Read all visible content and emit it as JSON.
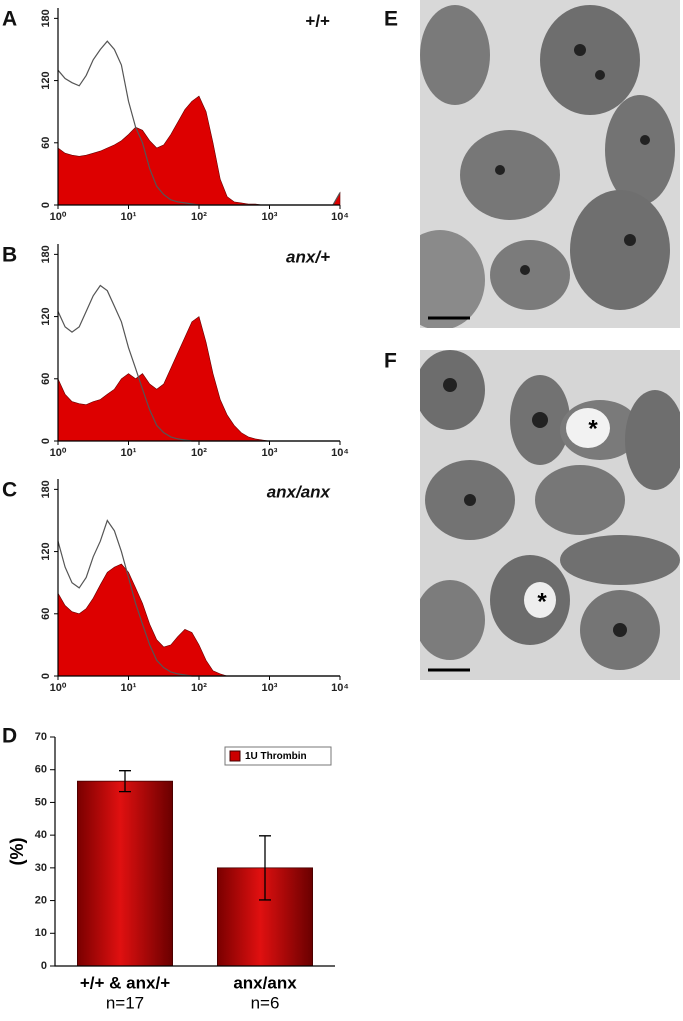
{
  "chart_data": [
    {
      "type": "area",
      "panel_label": "A",
      "annotation": "+/+",
      "xscale": "log",
      "x": [
        1,
        1.26,
        1.58,
        2,
        2.51,
        3.16,
        3.98,
        5.01,
        6.31,
        7.94,
        10,
        12.6,
        15.8,
        20,
        25.1,
        31.6,
        39.8,
        50.1,
        63.1,
        79.4,
        100,
        126,
        158,
        200,
        251,
        316,
        398,
        501,
        631,
        794,
        1000,
        1260,
        1580,
        2000,
        2510,
        3160,
        3980,
        5010,
        6310,
        7940,
        10000
      ],
      "series": [
        {
          "style": "filled",
          "color": "#dd0000",
          "values": [
            55,
            50,
            48,
            47,
            48,
            50,
            52,
            55,
            58,
            62,
            68,
            75,
            72,
            62,
            55,
            58,
            68,
            80,
            92,
            100,
            105,
            90,
            60,
            25,
            8,
            3,
            2,
            1,
            1,
            0,
            0,
            0,
            0,
            0,
            0,
            0,
            0,
            0,
            0,
            0,
            12
          ]
        },
        {
          "style": "outline",
          "color": "#555555",
          "values": [
            130,
            122,
            118,
            115,
            125,
            140,
            150,
            158,
            150,
            135,
            100,
            75,
            60,
            35,
            18,
            10,
            5,
            3,
            2,
            1,
            0,
            0,
            0,
            0,
            0,
            0,
            0,
            0,
            0,
            0,
            0,
            0,
            0,
            0,
            0,
            0,
            0,
            0,
            0,
            0,
            12
          ]
        }
      ],
      "xlim": [
        1,
        10000
      ],
      "ylim": [
        0,
        190
      ],
      "xticks": [
        {
          "value": 1,
          "label": "10⁰"
        },
        {
          "value": 10,
          "label": "10¹"
        },
        {
          "value": 100,
          "label": "10²"
        },
        {
          "value": 1000,
          "label": "10³"
        },
        {
          "value": 10000,
          "label": "10⁴"
        }
      ],
      "yticks": [
        0,
        60,
        120,
        180
      ]
    },
    {
      "type": "area",
      "panel_label": "B",
      "annotation": "anx/+",
      "xscale": "log",
      "x": [
        1,
        1.26,
        1.58,
        2,
        2.51,
        3.16,
        3.98,
        5.01,
        6.31,
        7.94,
        10,
        12.6,
        15.8,
        20,
        25.1,
        31.6,
        39.8,
        50.1,
        63.1,
        79.4,
        100,
        126,
        158,
        200,
        251,
        316,
        398,
        501,
        631,
        794,
        1000,
        1260,
        1580,
        2000,
        2510,
        3160,
        3980,
        5010,
        6310,
        7940,
        10000
      ],
      "series": [
        {
          "style": "filled",
          "color": "#dd0000",
          "values": [
            60,
            45,
            38,
            36,
            35,
            38,
            40,
            45,
            50,
            60,
            65,
            60,
            65,
            55,
            50,
            55,
            70,
            85,
            100,
            115,
            120,
            95,
            65,
            40,
            25,
            15,
            8,
            4,
            2,
            1,
            0,
            0,
            0,
            0,
            0,
            0,
            0,
            0,
            0,
            0,
            0
          ]
        },
        {
          "style": "outline",
          "color": "#555555",
          "values": [
            125,
            110,
            105,
            110,
            125,
            140,
            150,
            145,
            130,
            115,
            90,
            70,
            50,
            30,
            15,
            8,
            4,
            2,
            1,
            0,
            0,
            0,
            0,
            0,
            0,
            0,
            0,
            0,
            0,
            0,
            0,
            0,
            0,
            0,
            0,
            0,
            0,
            0,
            0,
            0,
            0
          ]
        }
      ],
      "xlim": [
        1,
        10000
      ],
      "ylim": [
        0,
        190
      ],
      "xticks": [
        {
          "value": 1,
          "label": "10⁰"
        },
        {
          "value": 10,
          "label": "10¹"
        },
        {
          "value": 100,
          "label": "10²"
        },
        {
          "value": 1000,
          "label": "10³"
        },
        {
          "value": 10000,
          "label": "10⁴"
        }
      ],
      "yticks": [
        0,
        60,
        120,
        180
      ]
    },
    {
      "type": "area",
      "panel_label": "C",
      "annotation": "anx/anx",
      "xscale": "log",
      "x": [
        1,
        1.26,
        1.58,
        2,
        2.51,
        3.16,
        3.98,
        5.01,
        6.31,
        7.94,
        10,
        12.6,
        15.8,
        20,
        25.1,
        31.6,
        39.8,
        50.1,
        63.1,
        79.4,
        100,
        126,
        158,
        200,
        251,
        316,
        398,
        501,
        631,
        794,
        1000,
        1260,
        1580,
        2000,
        2510,
        3160,
        3980,
        5010,
        6310,
        7940,
        10000
      ],
      "series": [
        {
          "style": "filled",
          "color": "#dd0000",
          "values": [
            80,
            68,
            62,
            60,
            65,
            75,
            88,
            100,
            105,
            108,
            100,
            85,
            70,
            50,
            35,
            28,
            30,
            38,
            45,
            42,
            30,
            15,
            5,
            2,
            0,
            0,
            0,
            0,
            0,
            0,
            0,
            0,
            0,
            0,
            0,
            0,
            0,
            0,
            0,
            0,
            0
          ]
        },
        {
          "style": "outline",
          "color": "#555555",
          "values": [
            130,
            105,
            90,
            85,
            95,
            115,
            130,
            150,
            140,
            120,
            95,
            70,
            50,
            30,
            15,
            8,
            4,
            2,
            1,
            0,
            0,
            0,
            0,
            0,
            0,
            0,
            0,
            0,
            0,
            0,
            0,
            0,
            0,
            0,
            0,
            0,
            0,
            0,
            0,
            0,
            0
          ]
        }
      ],
      "xlim": [
        1,
        10000
      ],
      "ylim": [
        0,
        190
      ],
      "xticks": [
        {
          "value": 1,
          "label": "10⁰"
        },
        {
          "value": 10,
          "label": "10¹"
        },
        {
          "value": 100,
          "label": "10²"
        },
        {
          "value": 1000,
          "label": "10³"
        },
        {
          "value": 10000,
          "label": "10⁴"
        }
      ],
      "yticks": [
        0,
        60,
        120,
        180
      ]
    },
    {
      "type": "bar",
      "panel_label": "D",
      "ylabel": "(%)",
      "categories": [
        "+/+ & anx/+",
        "anx/anx"
      ],
      "sublabels": [
        "n=17",
        "n=6"
      ],
      "series": [
        {
          "name": "1U Thrombin",
          "color": "#cc0000",
          "values": [
            56.5,
            30
          ],
          "errors": [
            3.2,
            9.8
          ]
        }
      ],
      "ylim": [
        0,
        70
      ],
      "yticks": [
        0,
        10,
        20,
        30,
        40,
        50,
        60,
        70
      ],
      "legend": "upper right"
    }
  ],
  "micrographs": {
    "E": {
      "label": "E"
    },
    "F": {
      "label": "F",
      "marks": [
        "*",
        "*"
      ]
    }
  }
}
